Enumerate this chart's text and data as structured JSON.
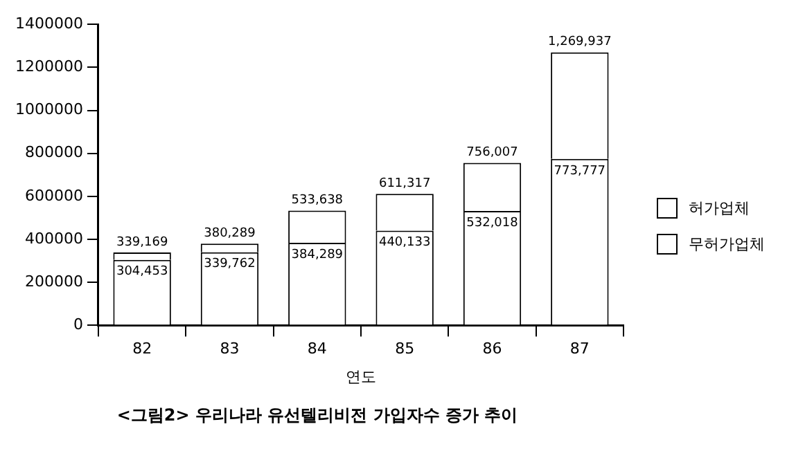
{
  "chart_data": {
    "type": "bar",
    "title": "<그림2> 우리나라 유선텔리비전 가입자수 증가 추이",
    "xlabel": "연도",
    "categories": [
      "82",
      "83",
      "84",
      "85",
      "86",
      "87"
    ],
    "stacked": true,
    "series": [
      {
        "name": "무허가업체",
        "color": "#ffffff",
        "values": [
          304453,
          339762,
          384289,
          440133,
          532018,
          773777
        ],
        "value_labels": [
          "304,453",
          "339,762",
          "384,289",
          "440,133",
          "532,018",
          "773,777"
        ]
      },
      {
        "name": "허가업체",
        "color": "#ffffff",
        "values": [
          34716,
          40527,
          149349,
          171184,
          223989,
          496160
        ]
      }
    ],
    "totals": [
      "339,169",
      "380,289",
      "533,638",
      "611,317",
      "756,007",
      "1,269,937"
    ],
    "ylim": [
      0,
      1400000
    ],
    "yticks": [
      0,
      200000,
      400000,
      600000,
      800000,
      1000000,
      1200000,
      1400000
    ],
    "grid": false,
    "legend": "right"
  }
}
